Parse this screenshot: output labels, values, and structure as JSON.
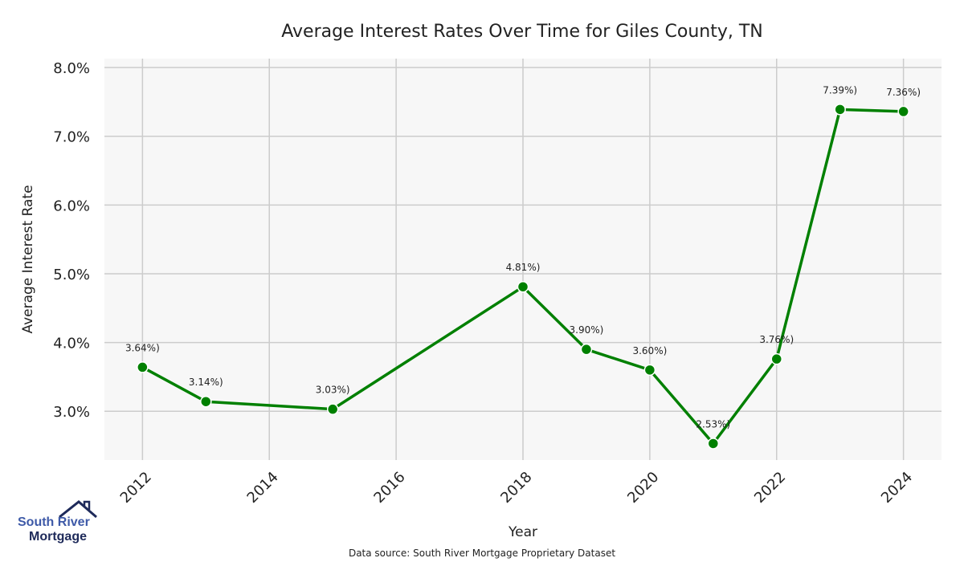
{
  "chart_data": {
    "type": "line",
    "title": "Average Interest Rates Over Time for Giles County, TN",
    "xlabel": "Year",
    "ylabel": "Average Interest Rate",
    "x": [
      2012,
      2013,
      2015,
      2018,
      2019,
      2020,
      2021,
      2022,
      2023,
      2024
    ],
    "values": [
      3.64,
      3.14,
      3.03,
      4.81,
      3.9,
      3.6,
      2.53,
      3.76,
      7.39,
      7.36
    ],
    "data_labels": [
      "3.64%)",
      "3.14%)",
      "3.03%)",
      "4.81%)",
      "3.90%)",
      "3.60%)",
      "2.53%)",
      "3.76%)",
      "7.39%)",
      "7.36%)"
    ],
    "xticks": [
      "2012",
      "2014",
      "2016",
      "2018",
      "2020",
      "2022",
      "2024"
    ],
    "yticks": [
      "3.0%",
      "4.0%",
      "5.0%",
      "6.0%",
      "7.0%",
      "8.0%"
    ],
    "xlim": [
      2011.4,
      2024.6
    ],
    "ylim": [
      2.29,
      8.13
    ],
    "grid": true,
    "line_color": "#008000"
  },
  "footer": {
    "source": "Data source: South River Mortgage Proprietary Dataset"
  },
  "logo": {
    "line1": "South River",
    "line2": "Mortgage"
  }
}
